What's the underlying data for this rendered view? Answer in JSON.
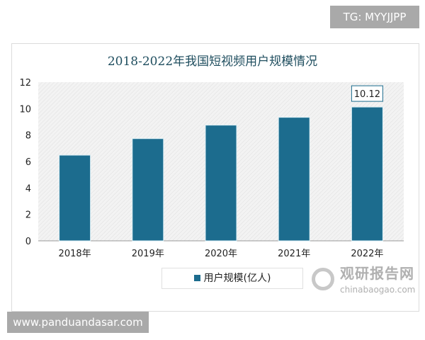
{
  "overlay": {
    "tg": "TG: MYYJJPP",
    "site": "www.panduandasar.com"
  },
  "watermark": {
    "cn": "观研报告网",
    "en": "chinabaogao.com"
  },
  "chart_data": {
    "type": "bar",
    "title": "2018-2022年我国短视频用户规模情况",
    "categories": [
      "2018年",
      "2019年",
      "2020年",
      "2021年",
      "2022年"
    ],
    "series": [
      {
        "name": "用户规模(亿人)",
        "values": [
          6.48,
          7.73,
          8.75,
          9.34,
          10.12
        ]
      }
    ],
    "data_labels": [
      {
        "category": "2022年",
        "text": "10.12"
      }
    ],
    "ylim": [
      0,
      12
    ],
    "yticks": [
      "0",
      "2",
      "4",
      "6",
      "8",
      "10",
      "12"
    ],
    "legend": "bottom",
    "color": "#1c6c8e",
    "grid": false
  }
}
